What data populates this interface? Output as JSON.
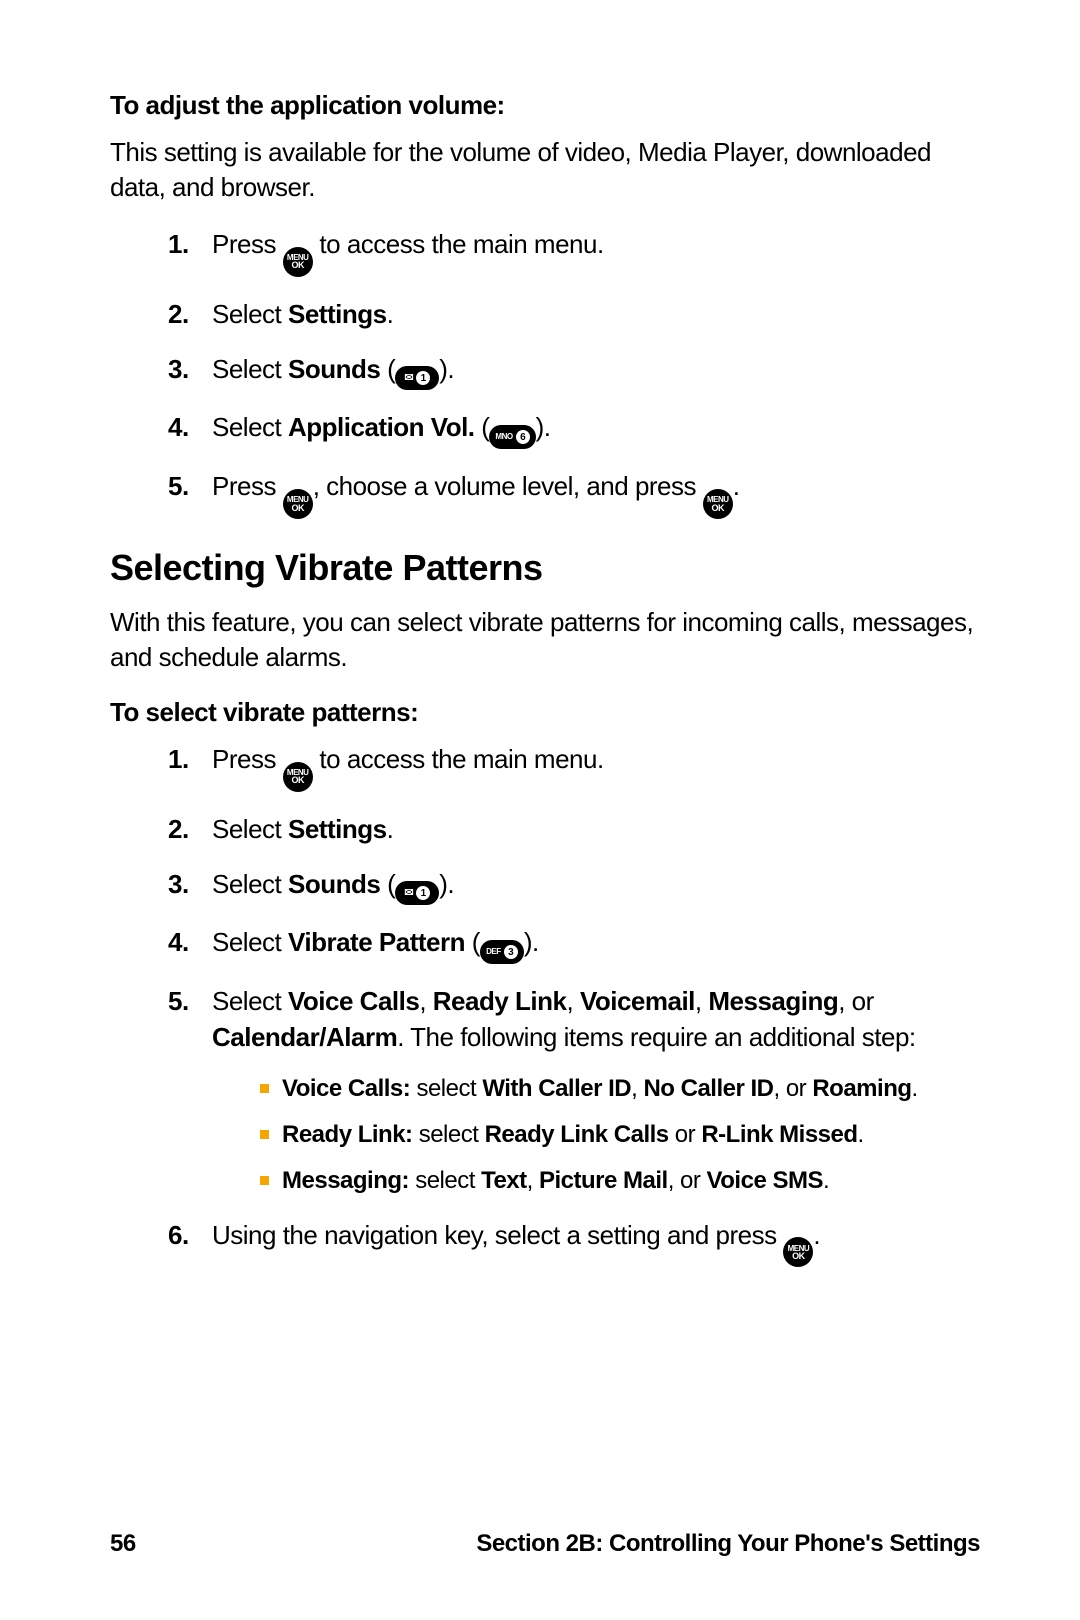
{
  "section1": {
    "subhead": "To adjust the application volume:",
    "intro": "This setting is available for the volume of video, Media Player, downloaded data, and browser.",
    "steps": {
      "s1_a": "Press ",
      "s1_b": " to access the main menu.",
      "s2_a": "Select ",
      "s2_bold": "Settings",
      "s2_b": ".",
      "s3_a": "Select ",
      "s3_bold": "Sounds",
      "s3_b": " (",
      "s3_c": ").",
      "s4_a": "Select ",
      "s4_bold": "Application Vol.",
      "s4_b": " (",
      "s4_c": ").",
      "s5_a": "Press ",
      "s5_b": ", choose a volume level, and press ",
      "s5_c": "."
    }
  },
  "heading2": "Selecting Vibrate Patterns",
  "section2": {
    "intro": "With this feature, you can select vibrate patterns for incoming calls, messages, and schedule alarms.",
    "subhead": "To select vibrate patterns:",
    "steps": {
      "s1_a": "Press ",
      "s1_b": " to access the main menu.",
      "s2_a": "Select ",
      "s2_bold": "Settings",
      "s2_b": ".",
      "s3_a": "Select ",
      "s3_bold": "Sounds",
      "s3_b": " (",
      "s3_c": ").",
      "s4_a": "Select ",
      "s4_bold": "Vibrate Pattern",
      "s4_b": " (",
      "s4_c": ").",
      "s5_a": "Select ",
      "s5_b1": "Voice Calls",
      "s5_c1": ", ",
      "s5_b2": "Ready Link",
      "s5_c2": ", ",
      "s5_b3": "Voicemail",
      "s5_c3": ", ",
      "s5_b4": "Messaging",
      "s5_c4": ", or ",
      "s5_b5": "Calendar/Alarm",
      "s5_c5": ". The following items require an additional step:",
      "sub1_b1": "Voice Calls:",
      "sub1_t1": " select ",
      "sub1_b2": "With Caller ID",
      "sub1_t2": ", ",
      "sub1_b3": "No Caller ID",
      "sub1_t3": ", or ",
      "sub1_b4": "Roaming",
      "sub1_t4": ".",
      "sub2_b1": "Ready Link:",
      "sub2_t1": " select ",
      "sub2_b2": "Ready Link Calls",
      "sub2_t2": " or ",
      "sub2_b3": "R-Link Missed",
      "sub2_t3": ".",
      "sub3_b1": "Messaging:",
      "sub3_t1": " select ",
      "sub3_b2": "Text",
      "sub3_t2": ", ",
      "sub3_b3": "Picture Mail",
      "sub3_t3": ", or ",
      "sub3_b4": "Voice SMS",
      "sub3_t4": ".",
      "s6_a": "Using the navigation key, select a setting and press ",
      "s6_b": "."
    }
  },
  "keys": {
    "menu": "MENU",
    "ok": "OK",
    "k1_letters": "✉",
    "k1_digit": "1",
    "k3_letters": "DEF",
    "k3_digit": "3",
    "k6_letters": "MNO",
    "k6_digit": "6"
  },
  "footer": {
    "page": "56",
    "title": "Section 2B: Controlling Your Phone's Settings"
  },
  "nums": {
    "n1": "1.",
    "n2": "2.",
    "n3": "3.",
    "n4": "4.",
    "n5": "5.",
    "n6": "6."
  }
}
